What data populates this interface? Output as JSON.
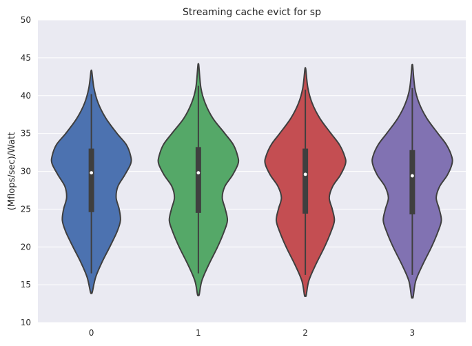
{
  "chart_data": {
    "type": "violin",
    "title": "Streaming cache evict for sp",
    "xlabel": "",
    "ylabel": "(Mflops/sec)/Watt",
    "ylim": [
      10,
      50
    ],
    "yticks": [
      10,
      15,
      20,
      25,
      30,
      35,
      40,
      45,
      50
    ],
    "categories": [
      "0",
      "1",
      "2",
      "3"
    ],
    "grid": true,
    "background": "#eaeaf2",
    "colors": [
      "#4c72b0",
      "#55a868",
      "#c44e52",
      "#8172b2"
    ],
    "series": [
      {
        "category": "0",
        "min": 14.0,
        "max": 43.2,
        "q1": 24.6,
        "median": 29.8,
        "q3": 33.0,
        "whisker_low": 16.5,
        "whisker_high": 40.2,
        "density": [
          [
            14.0,
            0.02
          ],
          [
            16,
            0.1
          ],
          [
            18,
            0.25
          ],
          [
            20,
            0.43
          ],
          [
            22,
            0.6
          ],
          [
            23.5,
            0.68
          ],
          [
            25,
            0.65
          ],
          [
            26.5,
            0.58
          ],
          [
            28,
            0.62
          ],
          [
            29.5,
            0.78
          ],
          [
            31,
            0.92
          ],
          [
            32,
            0.92
          ],
          [
            33.5,
            0.82
          ],
          [
            35,
            0.6
          ],
          [
            37,
            0.34
          ],
          [
            39,
            0.16
          ],
          [
            41,
            0.06
          ],
          [
            43.2,
            0.01
          ]
        ]
      },
      {
        "category": "1",
        "min": 13.7,
        "max": 44.0,
        "q1": 24.5,
        "median": 29.8,
        "q3": 33.2,
        "whisker_low": 16.5,
        "whisker_high": 41.3,
        "density": [
          [
            13.7,
            0.02
          ],
          [
            15.5,
            0.08
          ],
          [
            17.5,
            0.23
          ],
          [
            20,
            0.45
          ],
          [
            22,
            0.6
          ],
          [
            23.5,
            0.68
          ],
          [
            25,
            0.63
          ],
          [
            26.5,
            0.56
          ],
          [
            28,
            0.62
          ],
          [
            29.5,
            0.8
          ],
          [
            31,
            0.93
          ],
          [
            32,
            0.92
          ],
          [
            33.5,
            0.82
          ],
          [
            35,
            0.62
          ],
          [
            37,
            0.34
          ],
          [
            39,
            0.16
          ],
          [
            41,
            0.06
          ],
          [
            44.0,
            0.01
          ]
        ]
      },
      {
        "category": "2",
        "min": 13.6,
        "max": 43.5,
        "q1": 24.4,
        "median": 29.6,
        "q3": 33.0,
        "whisker_low": 16.3,
        "whisker_high": 40.8,
        "density": [
          [
            13.6,
            0.02
          ],
          [
            15.5,
            0.08
          ],
          [
            17.5,
            0.23
          ],
          [
            20,
            0.45
          ],
          [
            22,
            0.6
          ],
          [
            23.5,
            0.68
          ],
          [
            25,
            0.63
          ],
          [
            26.5,
            0.56
          ],
          [
            28,
            0.64
          ],
          [
            29.5,
            0.82
          ],
          [
            31,
            0.94
          ],
          [
            32,
            0.92
          ],
          [
            33.5,
            0.8
          ],
          [
            35,
            0.6
          ],
          [
            37,
            0.34
          ],
          [
            39,
            0.16
          ],
          [
            41,
            0.06
          ],
          [
            43.5,
            0.01
          ]
        ]
      },
      {
        "category": "3",
        "min": 13.4,
        "max": 43.9,
        "q1": 24.3,
        "median": 29.4,
        "q3": 32.8,
        "whisker_low": 16.3,
        "whisker_high": 41.0,
        "density": [
          [
            13.4,
            0.02
          ],
          [
            15.5,
            0.08
          ],
          [
            17.5,
            0.23
          ],
          [
            20,
            0.45
          ],
          [
            22,
            0.6
          ],
          [
            23.5,
            0.68
          ],
          [
            25,
            0.63
          ],
          [
            26.5,
            0.56
          ],
          [
            28,
            0.64
          ],
          [
            29.5,
            0.82
          ],
          [
            31,
            0.93
          ],
          [
            32,
            0.92
          ],
          [
            33.5,
            0.8
          ],
          [
            35,
            0.6
          ],
          [
            37,
            0.34
          ],
          [
            39,
            0.16
          ],
          [
            41,
            0.06
          ],
          [
            43.9,
            0.01
          ]
        ]
      }
    ]
  }
}
